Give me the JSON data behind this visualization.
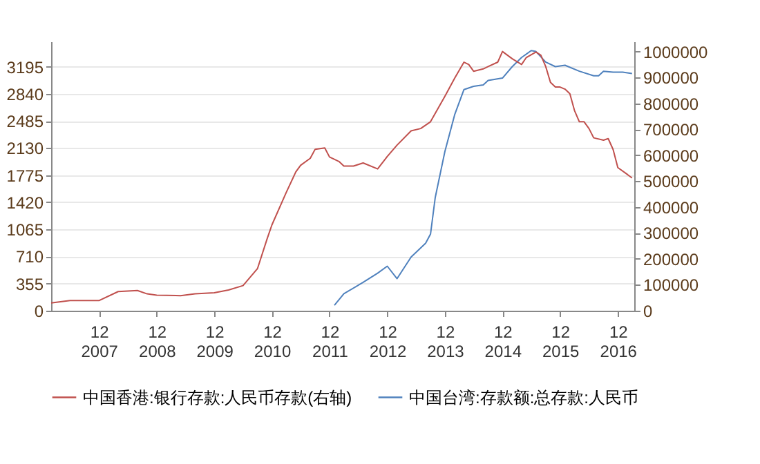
{
  "chart_data": {
    "type": "line",
    "legend": "bottom",
    "grid": "y",
    "line_style": "solid",
    "marker": "none",
    "xlim": [
      "2007-02-01",
      "2017-03-15"
    ],
    "xticks": [
      {
        "value": "2007-12",
        "label": "12\n2007"
      },
      {
        "value": "2008-12",
        "label": "12\n2008"
      },
      {
        "value": "2009-12",
        "label": "12\n2009"
      },
      {
        "value": "2010-12",
        "label": "12\n2010"
      },
      {
        "value": "2011-12",
        "label": "12\n2011"
      },
      {
        "value": "2012-12",
        "label": "12\n2012"
      },
      {
        "value": "2013-12",
        "label": "12\n2013"
      },
      {
        "value": "2014-12",
        "label": "12\n2014"
      },
      {
        "value": "2015-12",
        "label": "12\n2015"
      },
      {
        "value": "2016-12",
        "label": "12\n2016"
      }
    ],
    "ylim": [
      0,
      3525
    ],
    "yticks": [
      0,
      355,
      710,
      1065,
      1420,
      1775,
      2130,
      2485,
      2840,
      3195
    ],
    "y2lim": [
      0,
      1039000
    ],
    "y2ticks": [
      0,
      100000,
      200000,
      300000,
      400000,
      500000,
      600000,
      700000,
      800000,
      900000,
      1000000
    ],
    "series": [
      {
        "name": "中国香港:银行存款:人民币存款(右轴)",
        "color": "#c0504d",
        "axis": "y2",
        "x": [
          "2007-02",
          "2007-06",
          "2007-12",
          "2008-04",
          "2008-08",
          "2008-10",
          "2008-12",
          "2009-05",
          "2009-08",
          "2009-12",
          "2010-03",
          "2010-06",
          "2010-09",
          "2010-11",
          "2010-12",
          "2011-03",
          "2011-05",
          "2011-06",
          "2011-08",
          "2011-09",
          "2011-11",
          "2011-12",
          "2012-02",
          "2012-03",
          "2012-05",
          "2012-07",
          "2012-10",
          "2012-12",
          "2013-02",
          "2013-05",
          "2013-07",
          "2013-09",
          "2013-12",
          "2014-02",
          "2014-04",
          "2014-05",
          "2014-06",
          "2014-08",
          "2014-09",
          "2014-11",
          "2014-12",
          "2015-02",
          "2015-04",
          "2015-05",
          "2015-07",
          "2015-08",
          "2015-09",
          "2015-10",
          "2015-11",
          "2015-12",
          "2016-01",
          "2016-02",
          "2016-03",
          "2016-04",
          "2016-05",
          "2016-06",
          "2016-07",
          "2016-09",
          "2016-10",
          "2016-11",
          "2016-12",
          "2017-02",
          "2017-03"
        ],
        "values": [
          30000,
          39000,
          39000,
          74000,
          78000,
          65000,
          60000,
          58000,
          65000,
          69000,
          80000,
          97000,
          163000,
          278000,
          331000,
          455000,
          535000,
          561000,
          588000,
          623000,
          628000,
          593000,
          575000,
          558000,
          558000,
          570000,
          547000,
          595000,
          639000,
          694000,
          703000,
          729000,
          827000,
          897000,
          959000,
          950000,
          924000,
          933000,
          942000,
          959000,
          1000000,
          972000,
          950000,
          977000,
          998000,
          986000,
          942000,
          881000,
          863000,
          863000,
          855000,
          837000,
          773000,
          729000,
          729000,
          703000,
          667000,
          658000,
          664000,
          622000,
          552000,
          525000,
          512000
        ]
      },
      {
        "name": "中国台湾:存款额:总存款:人民币",
        "color": "#4f81bd",
        "x": [
          "2012-01",
          "2012-03",
          "2012-07",
          "2012-10",
          "2012-12",
          "2013-02",
          "2013-05",
          "2013-08",
          "2013-09",
          "2013-10",
          "2013-12",
          "2014-02",
          "2014-04",
          "2014-06",
          "2014-08",
          "2014-09",
          "2014-12",
          "2015-02",
          "2015-04",
          "2015-06",
          "2015-07",
          "2015-09",
          "2015-11",
          "2016-01",
          "2016-04",
          "2016-07",
          "2016-08",
          "2016-09",
          "2016-11",
          "2017-01",
          "2017-03"
        ],
        "values": [
          72,
          222,
          372,
          492,
          583,
          420,
          703,
          883,
          1003,
          1483,
          2084,
          2565,
          2895,
          2937,
          2955,
          3015,
          3045,
          3195,
          3315,
          3405,
          3393,
          3255,
          3195,
          3213,
          3135,
          3075,
          3075,
          3135,
          3123,
          3123,
          3105
        ]
      }
    ]
  }
}
